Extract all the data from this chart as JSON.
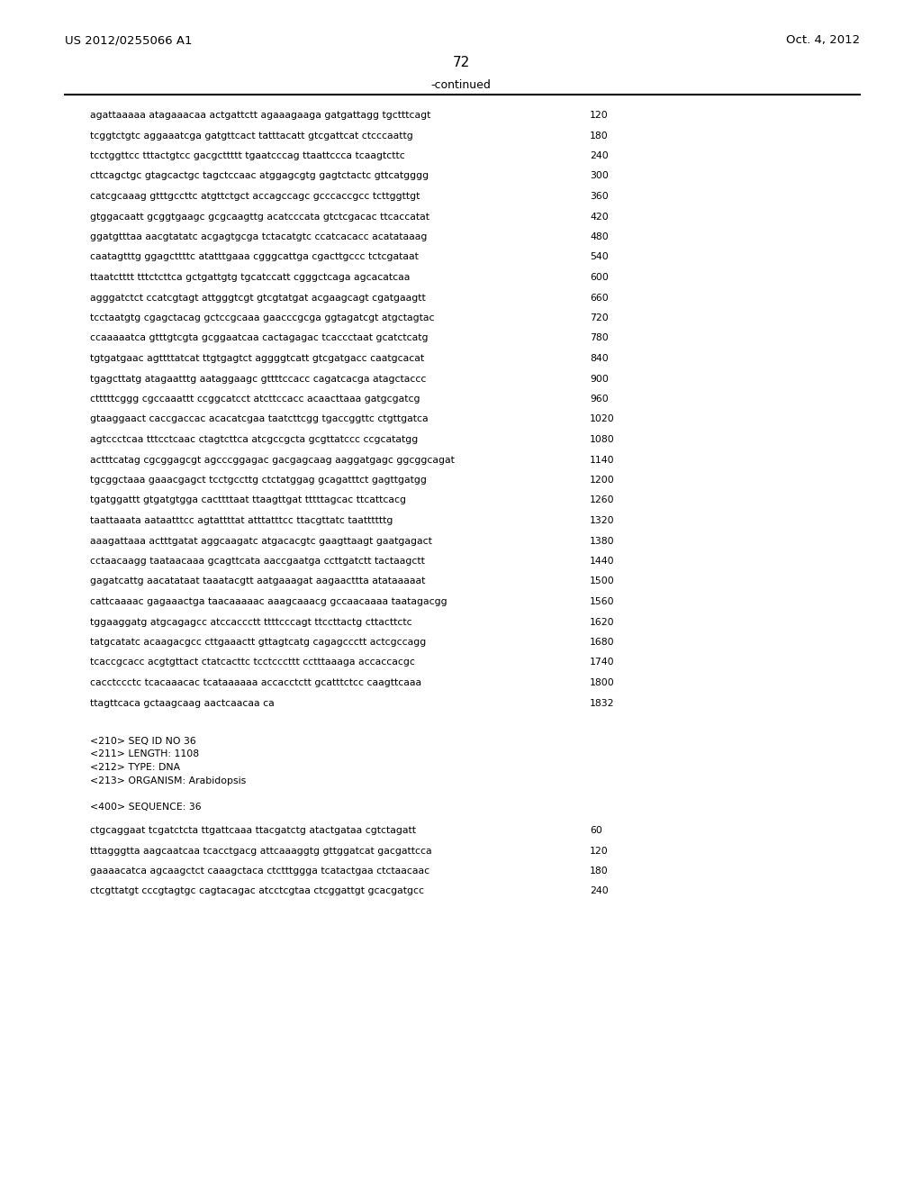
{
  "header_left": "US 2012/0255066 A1",
  "header_right": "Oct. 4, 2012",
  "page_number": "72",
  "continued_label": "-continued",
  "background_color": "#ffffff",
  "text_color": "#000000",
  "sequence_lines": [
    {
      "seq": "agattaaaaa atagaaacaa actgattctt agaaagaaga gatgattagg tgctttcagt",
      "num": "120"
    },
    {
      "seq": "tcggtctgtc aggaaatcga gatgttcact tatttacatt gtcgattcat ctcccaattg",
      "num": "180"
    },
    {
      "seq": "tcctggttcc tttactgtcc gacgcttttt tgaatcccag ttaattccca tcaagtcttc",
      "num": "240"
    },
    {
      "seq": "cttcagctgc gtagcactgc tagctccaac atggagcgtg gagtctactc gttcatgggg",
      "num": "300"
    },
    {
      "seq": "catcgcaaag gtttgccttc atgttctgct accagccagc gcccaccgcc tcttggttgt",
      "num": "360"
    },
    {
      "seq": "gtggacaatt gcggtgaagc gcgcaagttg acatcccata gtctcgacac ttcaccatat",
      "num": "420"
    },
    {
      "seq": "ggatgtttaa aacgtatatc acgagtgcga tctacatgtc ccatcacacc acatataaag",
      "num": "480"
    },
    {
      "seq": "caatagtttg ggagcttttc atatttgaaa cgggcattga cgacttgccc tctcgataat",
      "num": "540"
    },
    {
      "seq": "ttaatctttt tttctcttca gctgattgtg tgcatccatt cgggctcaga agcacatcaa",
      "num": "600"
    },
    {
      "seq": "agggatctct ccatcgtagt attgggtcgt gtcgtatgat acgaagcagt cgatgaagtt",
      "num": "660"
    },
    {
      "seq": "tcctaatgtg cgagctacag gctccgcaaa gaacccgcga ggtagatcgt atgctagtac",
      "num": "720"
    },
    {
      "seq": "ccaaaaatca gtttgtcgta gcggaatcaa cactagagac tcaccctaat gcatctcatg",
      "num": "780"
    },
    {
      "seq": "tgtgatgaac agttttatcat ttgtgagtct aggggtcatt gtcgatgacc caatgcacat",
      "num": "840"
    },
    {
      "seq": "tgagcttatg atagaatttg aataggaagc gttttccacc cagatcacga atagctaccc",
      "num": "900"
    },
    {
      "seq": "ctttttcggg cgccaaattt ccggcatcct atcttccacc acaacttaaa gatgcgatcg",
      "num": "960"
    },
    {
      "seq": "gtaaggaact caccgaccac acacatcgaa taatcttcgg tgaccggttc ctgttgatca",
      "num": "1020"
    },
    {
      "seq": "agtccctcaa tttcctcaac ctagtcttca atcgccgcta gcgttatccc ccgcatatgg",
      "num": "1080"
    },
    {
      "seq": "actttcatag cgcggagcgt agcccggagac gacgagcaag aaggatgagc ggcggcagat",
      "num": "1140"
    },
    {
      "seq": "tgcggctaaa gaaacgagct tcctgccttg ctctatggag gcagatttct gagttgatgg",
      "num": "1200"
    },
    {
      "seq": "tgatggattt gtgatgtgga cacttttaat ttaagttgat tttttagcac ttcattcacg",
      "num": "1260"
    },
    {
      "seq": "taattaaata aataatttcc agtattttat atttatttcc ttacgttatc taattttttg",
      "num": "1320"
    },
    {
      "seq": "aaagattaaa actttgatat aggcaagatc atgacacgtc gaagttaagt gaatgagact",
      "num": "1380"
    },
    {
      "seq": "cctaacaagg taataacaaa gcagttcata aaccgaatga ccttgatctt tactaagctt",
      "num": "1440"
    },
    {
      "seq": "gagatcattg aacatataat taaatacgtt aatgaaagat aagaacttta atataaaaat",
      "num": "1500"
    },
    {
      "seq": "cattcaaaac gagaaactga taacaaaaac aaagcaaacg gccaacaaaa taatagacgg",
      "num": "1560"
    },
    {
      "seq": "tggaaggatg atgcagagcc atccaccctt ttttcccagt ttccttactg cttacttctc",
      "num": "1620"
    },
    {
      "seq": "tatgcatatc acaagacgcc cttgaaactt gttagtcatg cagagccctt actcgccagg",
      "num": "1680"
    },
    {
      "seq": "tcaccgcacc acgtgttact ctatcacttc tcctcccttt cctttaaaga accaccacgc",
      "num": "1740"
    },
    {
      "seq": "cacctccctc tcacaaacac tcataaaaaa accacctctt gcatttctcc caagttcaaa",
      "num": "1800"
    },
    {
      "seq": "ttagttcaca gctaagcaag aactcaacaa ca",
      "num": "1832"
    }
  ],
  "meta_header": [
    "<210> SEQ ID NO 36",
    "<211> LENGTH: 1108",
    "<212> TYPE: DNA",
    "<213> ORGANISM: Arabidopsis"
  ],
  "seq400_label": "<400> SEQUENCE: 36",
  "seq400_lines": [
    {
      "seq": "ctgcaggaat tcgatctcta ttgattcaaa ttacgatctg atactgataa cgtctagatt",
      "num": "60"
    },
    {
      "seq": "tttagggtta aagcaatcaa tcacctgacg attcaaaggtg gttggatcat gacgattcca",
      "num": "120"
    },
    {
      "seq": "gaaaacatca agcaagctct caaagctaca ctctttggga tcatactgaa ctctaacaac",
      "num": "180"
    },
    {
      "seq": "ctcgttatgt cccgtagtgc cagtacagac atcctcgtaa ctcggattgt gcacgatgcc",
      "num": "240"
    }
  ]
}
